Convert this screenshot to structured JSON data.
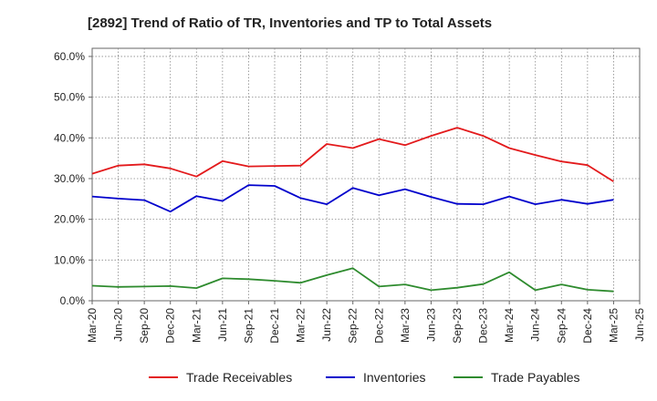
{
  "chart_data": {
    "type": "line",
    "title": "[2892]  Trend of Ratio of TR, Inventories and TP to Total Assets",
    "xlabel": "",
    "ylabel": "",
    "categories": [
      "Mar-20",
      "Jun-20",
      "Sep-20",
      "Dec-20",
      "Mar-21",
      "Jun-21",
      "Sep-21",
      "Dec-21",
      "Mar-22",
      "Jun-22",
      "Sep-22",
      "Dec-22",
      "Mar-23",
      "Jun-23",
      "Sep-23",
      "Dec-23",
      "Mar-24",
      "Jun-24",
      "Sep-24",
      "Dec-24",
      "Mar-25",
      "Jun-25"
    ],
    "ylim": [
      0,
      62
    ],
    "yticks": [
      0,
      10,
      20,
      30,
      40,
      50,
      60
    ],
    "ytick_labels": [
      "0.0%",
      "10.0%",
      "20.0%",
      "30.0%",
      "40.0%",
      "50.0%",
      "60.0%"
    ],
    "grid": true,
    "legend_position": "bottom",
    "series": [
      {
        "name": "Trade Receivables",
        "color": "#e31a1c",
        "values": [
          31.2,
          33.2,
          33.5,
          32.5,
          30.5,
          34.3,
          33.0,
          33.1,
          33.2,
          38.5,
          37.5,
          39.7,
          38.2,
          40.5,
          42.5,
          40.5,
          37.5,
          35.8,
          34.2,
          33.3,
          29.3,
          null
        ]
      },
      {
        "name": "Inventories",
        "color": "#0000cc",
        "values": [
          25.6,
          25.1,
          24.7,
          21.9,
          25.7,
          24.5,
          28.4,
          28.2,
          25.2,
          23.7,
          27.7,
          25.9,
          27.4,
          25.5,
          23.8,
          23.7,
          25.6,
          23.7,
          24.8,
          23.8,
          24.8,
          null
        ]
      },
      {
        "name": "Trade Payables",
        "color": "#2e8b2e",
        "values": [
          3.7,
          3.4,
          3.5,
          3.6,
          3.1,
          5.5,
          5.3,
          4.9,
          4.4,
          6.3,
          8.0,
          3.5,
          4.0,
          2.6,
          3.2,
          4.1,
          7.0,
          2.6,
          4.0,
          2.7,
          2.3,
          null
        ]
      }
    ]
  }
}
